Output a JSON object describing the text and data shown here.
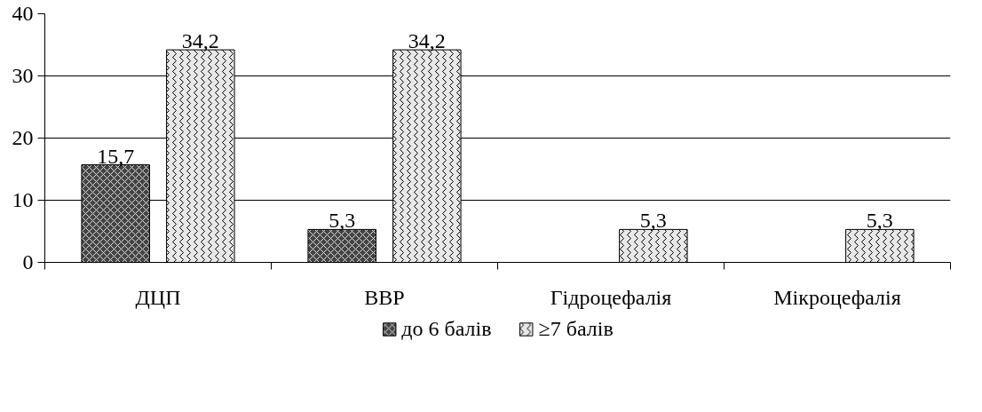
{
  "chart_data": {
    "type": "bar",
    "categories": [
      "ДЦП",
      "ВВР",
      "Гідроцефалія",
      "Мікроцефалія"
    ],
    "series": [
      {
        "name": "до 6 балів",
        "color": "#444444",
        "values": [
          15.7,
          5.3,
          null,
          null
        ],
        "value_labels": [
          "15,7",
          "5,3",
          null,
          null
        ]
      },
      {
        "name": "≥7 балів",
        "color": "#e8e8e8",
        "values": [
          34.2,
          34.2,
          5.3,
          5.3
        ],
        "value_labels": [
          "34,2",
          "34,2",
          "5,3",
          "5,3"
        ]
      }
    ],
    "ylim": [
      0,
      40
    ],
    "yticks": [
      0,
      10,
      20,
      30,
      40
    ],
    "grid": "y",
    "legend": "bottom"
  }
}
